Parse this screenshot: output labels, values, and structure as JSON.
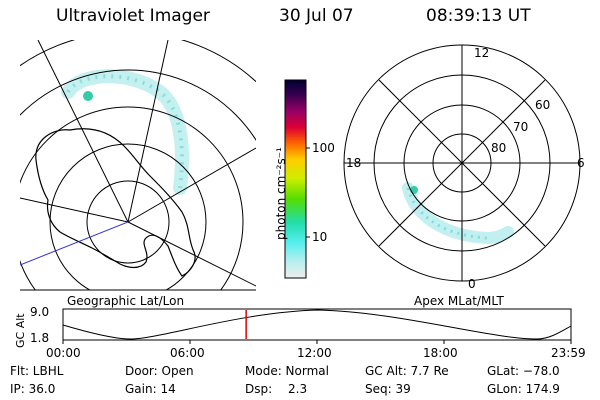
{
  "header": {
    "instrument": "Ultraviolet Imager",
    "date": "30 Jul 07",
    "time": "08:39:13 UT"
  },
  "colorbar": {
    "unit_label": "photon cm⁻²s⁻¹",
    "ticks": [
      "100",
      "10"
    ],
    "stops": [
      "#000033",
      "#33004d",
      "#990066",
      "#dd0033",
      "#ff6600",
      "#ffcc00",
      "#ccee00",
      "#55dd00",
      "#22ddaa",
      "#55eeee",
      "#bbeeee",
      "#eeeeee"
    ]
  },
  "left_panel": {
    "caption": "Geographic Lat/Lon"
  },
  "right_panel": {
    "caption": "Apex MLat/MLT",
    "mlt_labels": {
      "top": "12",
      "left": "18",
      "right": "6",
      "bottom": "0"
    },
    "lat_labels": [
      "60",
      "70",
      "80"
    ]
  },
  "timeline": {
    "axis_label": "GC Alt",
    "y_ticks": [
      "9.0",
      "1.8"
    ],
    "x_ticks": [
      "00:00",
      "06:00",
      "12:00",
      "18:00",
      "23:59"
    ],
    "current_time_fraction": 0.3605,
    "marker_color": "#dd0000"
  },
  "footer": {
    "row1": {
      "filter": "Flt: LBHL",
      "door": "Door: Open",
      "mode": "Mode: Normal",
      "gc_alt": "GC Alt: 7.7 Re",
      "glat": "GLat: −78.0"
    },
    "row2": {
      "ip": "IP: 36.0",
      "gain": "Gain: 14",
      "dsp_label": "Dsp:",
      "dsp_value": "2.3",
      "seq": "Seq: 39",
      "glon": "GLon: 174.9"
    }
  }
}
